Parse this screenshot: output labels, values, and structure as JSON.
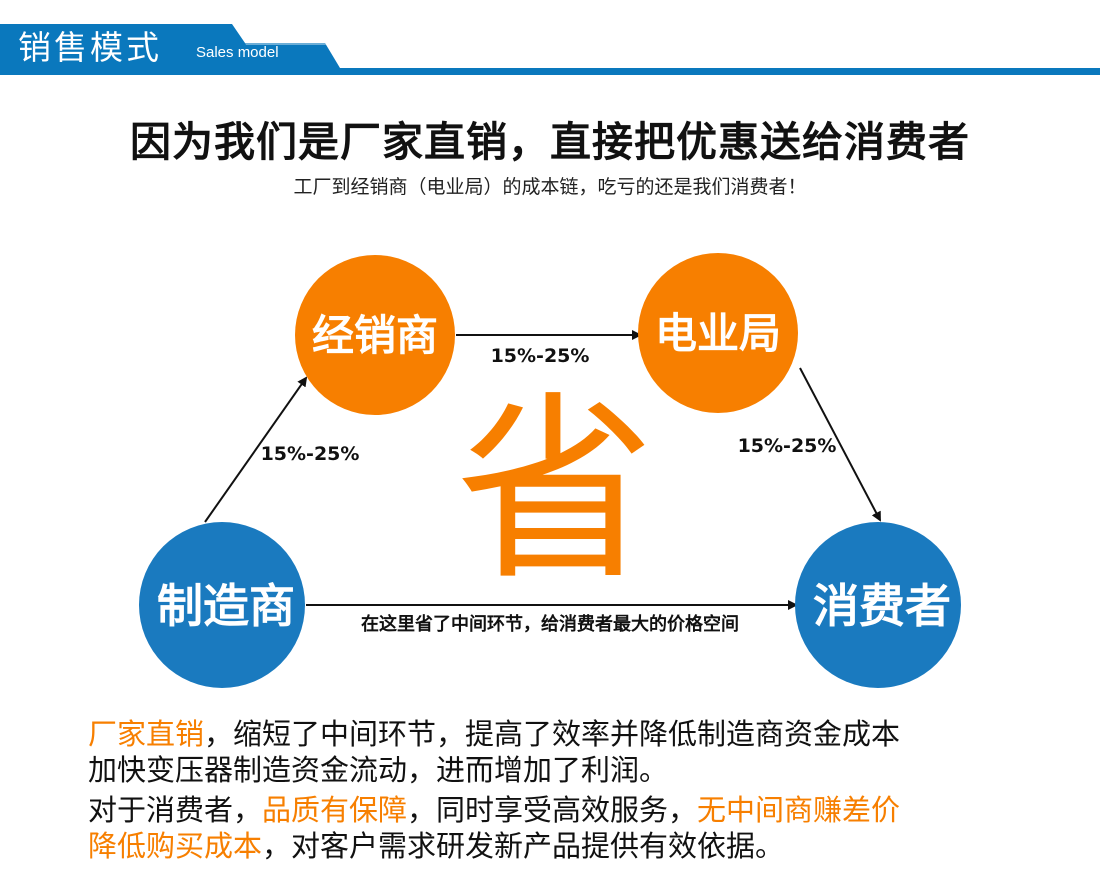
{
  "header": {
    "title": "销售模式",
    "subtitle": "Sales model",
    "color": "#0a78bd"
  },
  "headline": "因为我们是厂家直销，直接把优惠送给消费者",
  "subheadline": "工厂到经销商（电业局）的成本链，吃亏的还是我们消费者！",
  "diagram": {
    "nodes": {
      "dealer": "经销商",
      "power_bureau": "电业局",
      "manufacturer": "制造商",
      "consumer": "消费者"
    },
    "edges": {
      "manufacturer_to_dealer": "15%-25%",
      "dealer_to_bureau": "15%-25%",
      "bureau_to_consumer": "15%-25%",
      "manufacturer_to_consumer": "在这里省了中间环节，给消费者最大的价格空间"
    },
    "center_char": "省",
    "colors": {
      "orange": "#f77f00",
      "blue": "#1a7abf"
    }
  },
  "paragraphs": {
    "p1": {
      "hl1": "厂家直销",
      "t1": "，缩短了中间环节，提高了效率并降低制造商资金成本",
      "t2": "加快变压器制造资金流动，进而增加了利润。"
    },
    "p2": {
      "t1": "对于消费者，",
      "hl1": "品质有保障",
      "t2": "，同时享受高效服务，",
      "hl2": "无中间商赚差价",
      "hl3": "降低购买成本",
      "t3": "，对客户需求研发新产品提供有效依据。"
    }
  }
}
